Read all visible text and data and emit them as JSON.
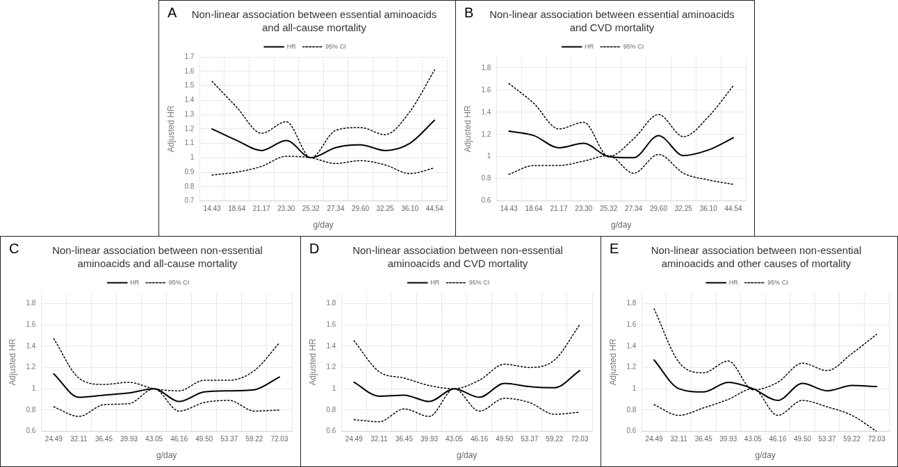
{
  "chart_data": [
    {
      "type": "line",
      "title": "Non-linear association between essential aminoacids and all-cause mortality",
      "annotations": [
        "A"
      ],
      "xlabel": "g/day",
      "ylabel": "Adjusted HR",
      "categories": [
        "14.43",
        "18.64",
        "21.17",
        "23.30",
        "25.32",
        "27.34",
        "29.60",
        "32.25",
        "36.10",
        "44.54"
      ],
      "ylim": [
        0.7,
        1.7
      ],
      "yticks": [
        {
          "value": 0.7,
          "label": "0.7"
        },
        {
          "value": 0.8,
          "label": "0.8"
        },
        {
          "value": 0.9,
          "label": "0.9"
        },
        {
          "value": 1,
          "label": "1"
        },
        {
          "value": 1.1,
          "label": "1.1"
        },
        {
          "value": 1.2,
          "label": "1.2"
        },
        {
          "value": 1.3,
          "label": "1.3"
        },
        {
          "value": 1.4,
          "label": "1.4"
        },
        {
          "value": 1.5,
          "label": "1.5"
        },
        {
          "value": 1.6,
          "label": "1.6"
        },
        {
          "value": 1.7,
          "label": "1.7"
        }
      ],
      "grid": true,
      "legend": "top",
      "marker": "none",
      "series": [
        {
          "name": "HR",
          "color": "#000000",
          "line_style": "solid",
          "values": [
            1.2,
            1.12,
            1.05,
            1.12,
            1.0,
            1.07,
            1.09,
            1.05,
            1.1,
            1.26
          ]
        },
        {
          "name": "95% CI",
          "color": "#000000",
          "line_style": "dotted",
          "values": [
            1.53,
            1.35,
            1.17,
            1.25,
            1.0,
            1.19,
            1.21,
            1.16,
            1.32,
            1.61
          ]
        },
        {
          "color": "#000000",
          "line_style": "dotted",
          "values": [
            0.88,
            0.9,
            0.94,
            1.01,
            1.0,
            0.96,
            0.98,
            0.95,
            0.89,
            0.93
          ]
        }
      ]
    },
    {
      "type": "line",
      "title": "Non-linear association between essential aminoacids and CVD mortality",
      "annotations": [
        "B"
      ],
      "xlabel": "g/day",
      "ylabel": "Adjusted HR",
      "categories": [
        "14.43",
        "18.64",
        "21.17",
        "23.30",
        "25.32",
        "27.34",
        "29.60",
        "32.25",
        "36.10",
        "44.54"
      ],
      "ylim": [
        0.6,
        1.9
      ],
      "yticks": [
        {
          "value": 0.6,
          "label": "0.6"
        },
        {
          "value": 0.8,
          "label": "0.8"
        },
        {
          "value": 1,
          "label": "1"
        },
        {
          "value": 1.2,
          "label": "1.2"
        },
        {
          "value": 1.4,
          "label": "1.4"
        },
        {
          "value": 1.6,
          "label": "1.6"
        },
        {
          "value": 1.8,
          "label": "1.8"
        }
      ],
      "grid": true,
      "legend": "top",
      "marker": "none",
      "series": [
        {
          "name": "HR",
          "color": "#000000",
          "line_style": "solid",
          "values": [
            1.23,
            1.19,
            1.08,
            1.12,
            1.0,
            0.99,
            1.19,
            1.01,
            1.06,
            1.17
          ]
        },
        {
          "name": "95% CI",
          "color": "#000000",
          "line_style": "dotted",
          "values": [
            1.66,
            1.48,
            1.25,
            1.31,
            1.0,
            1.16,
            1.38,
            1.18,
            1.36,
            1.64
          ]
        },
        {
          "color": "#000000",
          "line_style": "dotted",
          "values": [
            0.84,
            0.92,
            0.92,
            0.96,
            1.01,
            0.85,
            1.02,
            0.85,
            0.79,
            0.75
          ]
        }
      ]
    },
    {
      "type": "line",
      "title": "Non-linear association between non-essential aminoacids and all-cause mortality",
      "annotations": [
        "C"
      ],
      "xlabel": "g/day",
      "ylabel": "Adjusted HR",
      "categories": [
        "24.49",
        "32.11",
        "36.45",
        "39.93",
        "43.05",
        "46.16",
        "49.50",
        "53.37",
        "59.22",
        "72.03"
      ],
      "ylim": [
        0.6,
        1.9
      ],
      "yticks": [
        {
          "value": 0.6,
          "label": "0.6"
        },
        {
          "value": 0.8,
          "label": "0.8"
        },
        {
          "value": 1,
          "label": "1"
        },
        {
          "value": 1.2,
          "label": "1.2"
        },
        {
          "value": 1.4,
          "label": "1.4"
        },
        {
          "value": 1.6,
          "label": "1.6"
        },
        {
          "value": 1.8,
          "label": "1.8"
        }
      ],
      "grid": true,
      "legend": "top",
      "marker": "none",
      "series": [
        {
          "name": "HR",
          "color": "#000000",
          "line_style": "solid",
          "values": [
            1.14,
            0.92,
            0.94,
            0.96,
            1.0,
            0.88,
            0.97,
            0.98,
            0.99,
            1.11
          ]
        },
        {
          "name": "95% CI",
          "color": "#000000",
          "line_style": "dotted",
          "values": [
            1.47,
            1.1,
            1.04,
            1.06,
            1.0,
            0.98,
            1.08,
            1.08,
            1.17,
            1.43
          ]
        },
        {
          "color": "#000000",
          "line_style": "dotted",
          "values": [
            0.83,
            0.74,
            0.85,
            0.86,
            1.0,
            0.79,
            0.87,
            0.89,
            0.79,
            0.8
          ]
        }
      ]
    },
    {
      "type": "line",
      "title": "Non-linear association between non-essential aminoacids and CVD mortality",
      "annotations": [
        "D"
      ],
      "xlabel": "g/day",
      "ylabel": "Adjusted HR",
      "categories": [
        "24.49",
        "32.11",
        "36.45",
        "39.93",
        "43.05",
        "46.16",
        "49.50",
        "53.37",
        "59.22",
        "72.03"
      ],
      "ylim": [
        0.6,
        1.9
      ],
      "yticks": [
        {
          "value": 0.6,
          "label": "0.6"
        },
        {
          "value": 0.8,
          "label": "0.8"
        },
        {
          "value": 1,
          "label": "1"
        },
        {
          "value": 1.2,
          "label": "1.2"
        },
        {
          "value": 1.4,
          "label": "1.4"
        },
        {
          "value": 1.6,
          "label": "1.6"
        },
        {
          "value": 1.8,
          "label": "1.8"
        }
      ],
      "grid": true,
      "legend": "top",
      "marker": "none",
      "series": [
        {
          "name": "HR",
          "color": "#000000",
          "line_style": "solid",
          "values": [
            1.06,
            0.93,
            0.94,
            0.88,
            1.0,
            0.92,
            1.05,
            1.02,
            1.01,
            1.17
          ]
        },
        {
          "name": "95% CI",
          "color": "#000000",
          "line_style": "dotted",
          "values": [
            1.45,
            1.16,
            1.1,
            1.03,
            1.0,
            1.08,
            1.23,
            1.2,
            1.27,
            1.6
          ]
        },
        {
          "color": "#000000",
          "line_style": "dotted",
          "values": [
            0.71,
            0.69,
            0.81,
            0.74,
            1.0,
            0.79,
            0.91,
            0.87,
            0.76,
            0.78
          ]
        }
      ]
    },
    {
      "type": "line",
      "title": "Non-linear association between non-essential aminoacids and other causes of mortality",
      "annotations": [
        "E"
      ],
      "xlabel": "g/day",
      "ylabel": "Adjusted HR",
      "categories": [
        "24.49",
        "32.11",
        "36.45",
        "39.93",
        "43.05",
        "46.16",
        "49.50",
        "53.37",
        "59.22",
        "72.03"
      ],
      "ylim": [
        0.6,
        1.9
      ],
      "yticks": [
        {
          "value": 0.6,
          "label": "0.6"
        },
        {
          "value": 0.8,
          "label": "0.8"
        },
        {
          "value": 1,
          "label": "1"
        },
        {
          "value": 1.2,
          "label": "1.2"
        },
        {
          "value": 1.4,
          "label": "1.4"
        },
        {
          "value": 1.6,
          "label": "1.6"
        },
        {
          "value": 1.8,
          "label": "1.8"
        }
      ],
      "grid": true,
      "legend": "top",
      "marker": "none",
      "series": [
        {
          "name": "HR",
          "color": "#000000",
          "line_style": "solid",
          "values": [
            1.27,
            1.0,
            0.97,
            1.06,
            1.0,
            0.89,
            1.05,
            0.98,
            1.03,
            1.02
          ]
        },
        {
          "name": "95% CI",
          "color": "#000000",
          "line_style": "dotted",
          "values": [
            1.75,
            1.25,
            1.15,
            1.26,
            0.99,
            1.06,
            1.24,
            1.17,
            1.33,
            1.51
          ]
        },
        {
          "color": "#000000",
          "line_style": "dotted",
          "values": [
            0.85,
            0.75,
            0.82,
            0.9,
            1.0,
            0.75,
            0.89,
            0.83,
            0.75,
            0.6
          ]
        }
      ]
    }
  ]
}
